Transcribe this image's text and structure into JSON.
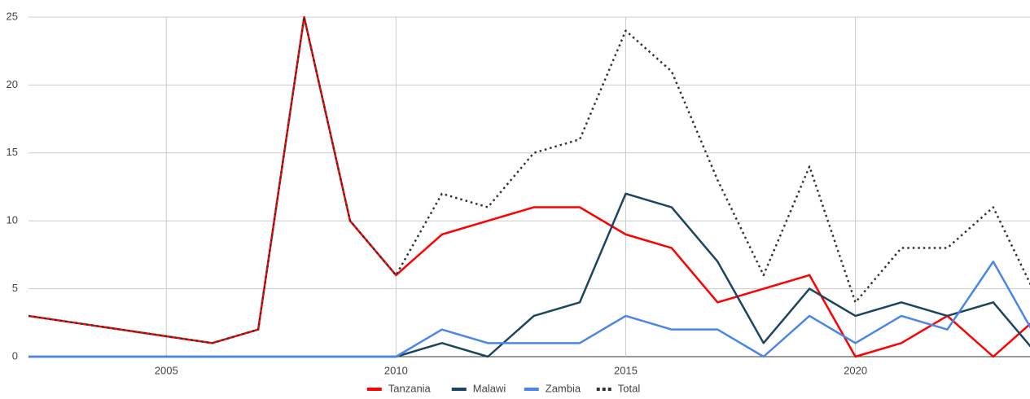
{
  "chart_data": {
    "type": "line",
    "x": [
      2002,
      2003,
      2004,
      2005,
      2006,
      2007,
      2008,
      2009,
      2010,
      2011,
      2012,
      2013,
      2014,
      2015,
      2016,
      2017,
      2018,
      2019,
      2020,
      2021,
      2022,
      2023,
      2024
    ],
    "series": [
      {
        "name": "Tanzania",
        "color": "#ff0000",
        "values": [
          3,
          2.5,
          2,
          1.5,
          1,
          2,
          25,
          10,
          6,
          9,
          10,
          11,
          11,
          9,
          8,
          4,
          5,
          6,
          0,
          1,
          3,
          0,
          3
        ]
      },
      {
        "name": "Malawi",
        "color": "#1b4560",
        "values": [
          0,
          0,
          0,
          0,
          0,
          0,
          0,
          0,
          0,
          1,
          0,
          3,
          4,
          12,
          11,
          7,
          1,
          5,
          3,
          4,
          3,
          4,
          0
        ]
      },
      {
        "name": "Zambia",
        "color": "#4a86e8",
        "values": [
          0,
          0,
          0,
          0,
          0,
          0,
          0,
          0,
          0,
          2,
          1,
          1,
          1,
          3,
          2,
          2,
          0,
          3,
          1,
          3,
          2,
          7,
          1
        ]
      },
      {
        "name": "Total",
        "color": "#333333",
        "dashed": true,
        "values": [
          3,
          2.5,
          2,
          1.5,
          1,
          2,
          25,
          10,
          6,
          12,
          11,
          15,
          16,
          24,
          21,
          13,
          6,
          14,
          4,
          8,
          8,
          11,
          4
        ]
      }
    ],
    "xlim": [
      2002,
      2023.8
    ],
    "xticks": [
      2005,
      2010,
      2015,
      2020
    ],
    "ylim": [
      0,
      25
    ],
    "yticks": [
      0,
      5,
      10,
      15,
      20,
      25
    ],
    "grid": true,
    "legend": "bottom"
  }
}
